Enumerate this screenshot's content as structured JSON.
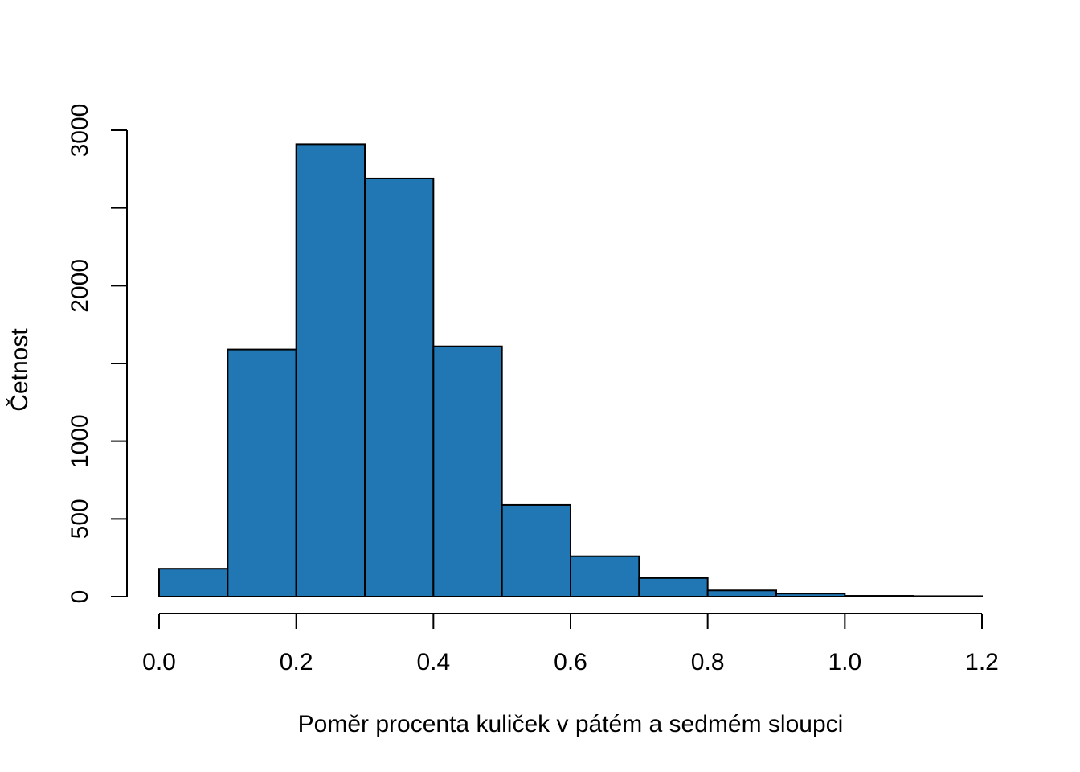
{
  "chart_data": {
    "type": "bar",
    "subtype": "histogram",
    "bin_edges": [
      0.0,
      0.1,
      0.2,
      0.3,
      0.4,
      0.5,
      0.6,
      0.7,
      0.8,
      0.9,
      1.0,
      1.1,
      1.2
    ],
    "values": [
      180,
      1590,
      2910,
      2690,
      1610,
      590,
      260,
      120,
      40,
      20,
      5,
      3
    ],
    "xlabel": "Poměr procenta kuliček v pátém a sedmém sloupci",
    "ylabel": "Četnost",
    "xlim": [
      0.0,
      1.2
    ],
    "ylim": [
      0,
      3000
    ],
    "x_ticks": [
      0.0,
      0.2,
      0.4,
      0.6,
      0.8,
      1.0,
      1.2
    ],
    "x_tick_labels": [
      "0.0",
      "0.2",
      "0.4",
      "0.6",
      "0.8",
      "1.0",
      "1.2"
    ],
    "y_ticks": [
      0,
      500,
      1000,
      1500,
      2000,
      2500,
      3000
    ],
    "y_tick_labels": [
      "0",
      "500",
      "1000",
      "",
      "2000",
      "",
      "3000"
    ],
    "bar_color": "#2077b4",
    "grid": false
  }
}
